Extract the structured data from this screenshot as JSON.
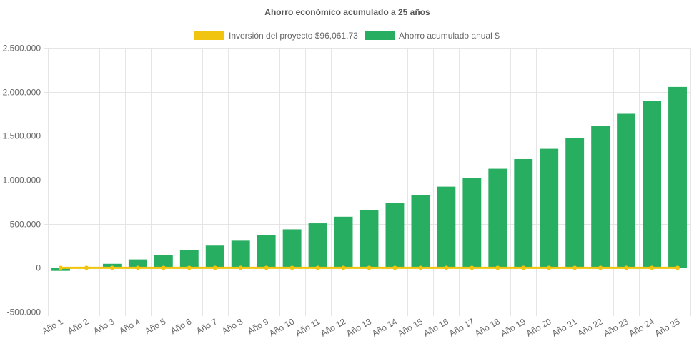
{
  "chart_data": {
    "type": "bar",
    "title": "Ahorro económico acumulado a 25 años",
    "categories": [
      "Año 1",
      "Año 2",
      "Año 3",
      "Año 4",
      "Año 5",
      "Año 6",
      "Año 7",
      "Año 8",
      "Año 9",
      "Año 10",
      "Año 11",
      "Año 12",
      "Año 13",
      "Año 14",
      "Año 15",
      "Año 16",
      "Año 17",
      "Año 18",
      "Año 19",
      "Año 20",
      "Año 21",
      "Año 22",
      "Año 23",
      "Año 24",
      "Año 25"
    ],
    "ylim": [
      -500000,
      2500000
    ],
    "yticks": [
      -500000,
      0,
      500000,
      1000000,
      1500000,
      2000000,
      2500000
    ],
    "ytick_labels": [
      "-500.000",
      "0",
      "500.000",
      "1.000.000",
      "1.500.000",
      "2.000.000",
      "2.500.000"
    ],
    "grid": true,
    "legend_position": "top",
    "series": [
      {
        "name": "Inversión del proyecto $96,061.73",
        "type": "line",
        "color": "#f1c40f",
        "values": [
          0,
          0,
          0,
          0,
          0,
          0,
          0,
          0,
          0,
          0,
          0,
          0,
          0,
          0,
          0,
          0,
          0,
          0,
          0,
          0,
          0,
          0,
          0,
          0,
          0
        ]
      },
      {
        "name": "Ahorro acumulado anual $",
        "type": "bar",
        "color": "#27ae60",
        "values": [
          -35000,
          3000,
          45000,
          95000,
          145000,
          198000,
          252000,
          308000,
          370000,
          437000,
          505000,
          580000,
          658000,
          740000,
          828000,
          922000,
          1022000,
          1125000,
          1235000,
          1352000,
          1476000,
          1610000,
          1750000,
          1897000,
          2055000
        ]
      }
    ]
  }
}
